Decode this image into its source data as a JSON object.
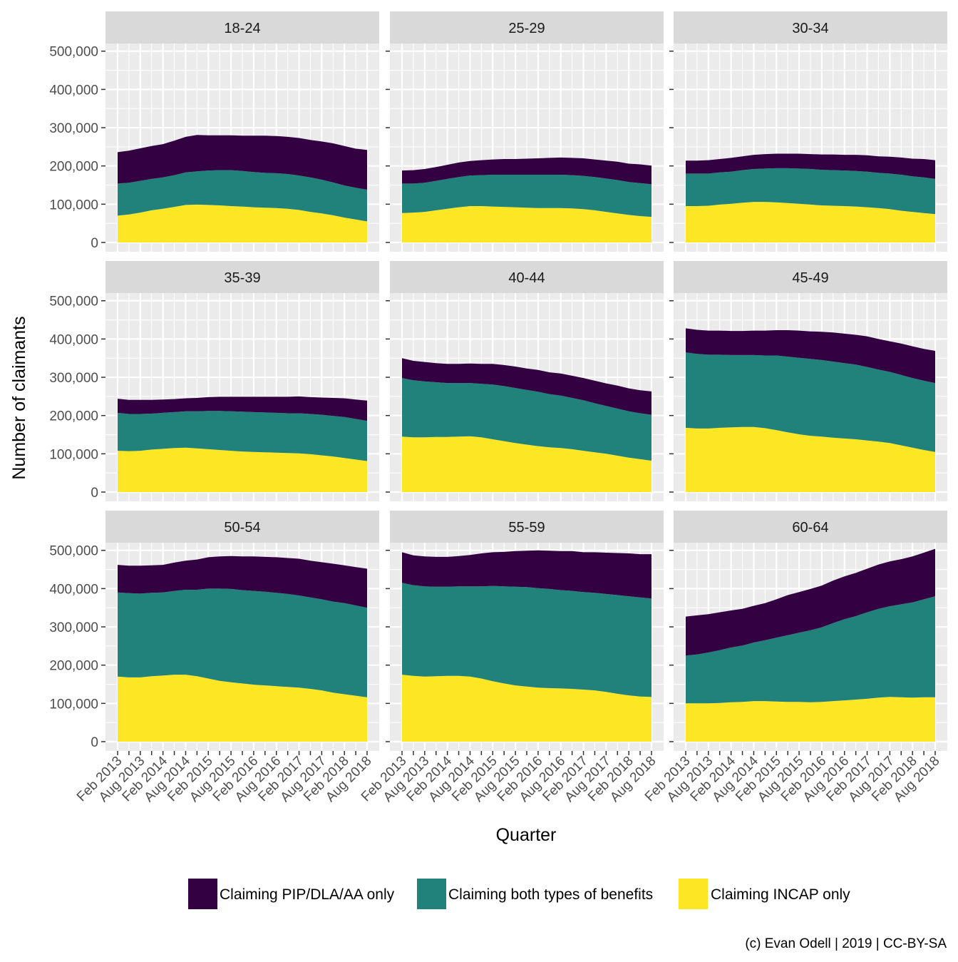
{
  "chart_data": {
    "type": "area",
    "stacked": true,
    "facet_layout": "3x3 grid",
    "xlabel": "Quarter",
    "ylabel": "Number of claimants",
    "ylim": [
      0,
      520000
    ],
    "y_ticks": [
      0,
      100000,
      200000,
      300000,
      400000,
      500000
    ],
    "y_tick_labels": [
      "0",
      "100,000",
      "200,000",
      "300,000",
      "400,000",
      "500,000"
    ],
    "x": [
      "Feb 2013",
      "May 2013",
      "Aug 2013",
      "Nov 2013",
      "Feb 2014",
      "May 2014",
      "Aug 2014",
      "Nov 2014",
      "Feb 2015",
      "May 2015",
      "Aug 2015",
      "Nov 2015",
      "Feb 2016",
      "May 2016",
      "Aug 2016",
      "Nov 2016",
      "Feb 2017",
      "May 2017",
      "Aug 2017",
      "Nov 2017",
      "Feb 2018",
      "May 2018",
      "Aug 2018"
    ],
    "x_tick_labels": [
      "Feb 2013",
      "Aug 2013",
      "Feb 2014",
      "Aug 2014",
      "Feb 2015",
      "Aug 2015",
      "Feb 2016",
      "Aug 2016",
      "Feb 2017",
      "Aug 2017",
      "Feb 2018",
      "Aug 2018"
    ],
    "legend": {
      "position": "bottom",
      "entries": [
        {
          "label": "Claiming PIP/DLA/AA only",
          "color": "#330042"
        },
        {
          "label": "Claiming both types of benefits",
          "color": "#21817B"
        },
        {
          "label": "Claiming INCAP only",
          "color": "#FDE725"
        }
      ]
    },
    "colors": {
      "panel_bg": "#EBEBEB",
      "grid": "#FFFFFF",
      "strip_bg": "#D9D9D9"
    },
    "grid": true,
    "caption": "(c) Evan Odell | 2019 | CC-BY-SA",
    "panels": [
      {
        "label": "18-24",
        "series": [
          {
            "name": "Claiming INCAP only",
            "values": [
              70000,
              73000,
              78000,
              84000,
              88000,
              93000,
              98000,
              99000,
              98000,
              97000,
              95000,
              94000,
              92000,
              91000,
              90000,
              88000,
              85000,
              80000,
              76000,
              71000,
              65000,
              60000,
              55000
            ]
          },
          {
            "name": "Claiming both types of benefits",
            "values": [
              84000,
              83000,
              83000,
              82000,
              82000,
              83000,
              85000,
              87000,
              90000,
              92000,
              94000,
              93000,
              92000,
              91000,
              91000,
              91000,
              90000,
              90000,
              88000,
              86000,
              84000,
              83000,
              83000
            ]
          },
          {
            "name": "Claiming PIP/DLA/AA only",
            "values": [
              82000,
              84000,
              85000,
              86000,
              87000,
              90000,
              93000,
              95000,
              92000,
              91000,
              91000,
              92000,
              95000,
              97000,
              97000,
              97000,
              98000,
              98000,
              100000,
              102000,
              103000,
              102000,
              104000
            ]
          }
        ]
      },
      {
        "label": "25-29",
        "series": [
          {
            "name": "Claiming INCAP only",
            "values": [
              77000,
              78000,
              80000,
              84000,
              88000,
              92000,
              95000,
              95000,
              94000,
              93000,
              92000,
              91000,
              90000,
              90000,
              90000,
              89000,
              87000,
              84000,
              80000,
              76000,
              72000,
              69000,
              67000
            ]
          },
          {
            "name": "Claiming both types of benefits",
            "values": [
              77000,
              76000,
              76000,
              77000,
              78000,
              79000,
              80000,
              81000,
              83000,
              84000,
              85000,
              86000,
              87000,
              87000,
              87000,
              87000,
              87000,
              87000,
              87000,
              87000,
              86000,
              86000,
              85000
            ]
          },
          {
            "name": "Claiming PIP/DLA/AA only",
            "values": [
              34000,
              35000,
              36000,
              36000,
              37000,
              38000,
              38000,
              39000,
              40000,
              41000,
              41000,
              42000,
              43000,
              44000,
              45000,
              45000,
              46000,
              46000,
              47000,
              48000,
              48000,
              49000,
              49000
            ]
          }
        ]
      },
      {
        "label": "30-34",
        "series": [
          {
            "name": "Claiming INCAP only",
            "values": [
              95000,
              95000,
              96000,
              99000,
              101000,
              104000,
              106000,
              106000,
              105000,
              103000,
              101000,
              99000,
              97000,
              96000,
              95000,
              94000,
              92000,
              90000,
              87000,
              83000,
              80000,
              77000,
              74000
            ]
          },
          {
            "name": "Claiming both types of benefits",
            "values": [
              85000,
              85000,
              84000,
              84000,
              84000,
              85000,
              86000,
              87000,
              89000,
              91000,
              92000,
              93000,
              93000,
              93000,
              93000,
              93000,
              93000,
              92000,
              93000,
              94000,
              93000,
              93000,
              92000
            ]
          },
          {
            "name": "Claiming PIP/DLA/AA only",
            "values": [
              34000,
              34000,
              35000,
              35000,
              36000,
              36000,
              37000,
              38000,
              38000,
              38000,
              39000,
              39000,
              40000,
              41000,
              41000,
              42000,
              43000,
              43000,
              44000,
              45000,
              46000,
              48000,
              49000
            ]
          }
        ]
      },
      {
        "label": "35-39",
        "series": [
          {
            "name": "Claiming INCAP only",
            "values": [
              108000,
              107000,
              108000,
              111000,
              113000,
              115000,
              116000,
              114000,
              112000,
              110000,
              108000,
              106000,
              105000,
              104000,
              103000,
              102000,
              101000,
              99000,
              96000,
              93000,
              89000,
              85000,
              81000
            ]
          },
          {
            "name": "Claiming both types of benefits",
            "values": [
              99000,
              97000,
              96000,
              94000,
              94000,
              94000,
              95000,
              97000,
              100000,
              102000,
              103000,
              104000,
              104000,
              104000,
              104000,
              104000,
              105000,
              105000,
              106000,
              106000,
              107000,
              106000,
              105000
            ]
          },
          {
            "name": "Claiming PIP/DLA/AA only",
            "values": [
              37000,
              37000,
              37000,
              36000,
              35000,
              34000,
              34000,
              35000,
              36000,
              37000,
              38000,
              39000,
              40000,
              41000,
              42000,
              43000,
              44000,
              44000,
              45000,
              47000,
              49000,
              51000,
              53000
            ]
          }
        ]
      },
      {
        "label": "40-44",
        "series": [
          {
            "name": "Claiming INCAP only",
            "values": [
              145000,
              143000,
              143000,
              144000,
              144000,
              145000,
              146000,
              143000,
              138000,
              133000,
              128000,
              124000,
              120000,
              117000,
              115000,
              112000,
              108000,
              104000,
              100000,
              95000,
              90000,
              86000,
              82000
            ]
          },
          {
            "name": "Claiming both types of benefits",
            "values": [
              153000,
              149000,
              146000,
              143000,
              141000,
              140000,
              139000,
              140000,
              143000,
              144000,
              144000,
              143000,
              142000,
              139000,
              137000,
              134000,
              132000,
              128000,
              125000,
              123000,
              121000,
              120000,
              120000
            ]
          },
          {
            "name": "Claiming PIP/DLA/AA only",
            "values": [
              52000,
              51000,
              51000,
              50000,
              50000,
              50000,
              51000,
              52000,
              54000,
              55000,
              56000,
              56000,
              57000,
              57000,
              58000,
              58000,
              58000,
              59000,
              59000,
              60000,
              60000,
              60000,
              61000
            ]
          }
        ]
      },
      {
        "label": "45-49",
        "series": [
          {
            "name": "Claiming INCAP only",
            "values": [
              168000,
              166000,
              166000,
              168000,
              169000,
              170000,
              170000,
              167000,
              162000,
              156000,
              151000,
              147000,
              145000,
              142000,
              140000,
              138000,
              135000,
              132000,
              128000,
              122000,
              116000,
              110000,
              105000
            ]
          },
          {
            "name": "Claiming both types of benefits",
            "values": [
              197000,
              195000,
              193000,
              191000,
              189000,
              188000,
              188000,
              190000,
              195000,
              198000,
              200000,
              201000,
              200000,
              199000,
              197000,
              195000,
              192000,
              188000,
              186000,
              184000,
              182000,
              181000,
              180000
            ]
          },
          {
            "name": "Claiming PIP/DLA/AA only",
            "values": [
              63000,
              63000,
              63000,
              63000,
              63000,
              63000,
              64000,
              65000,
              66000,
              69000,
              71000,
              72000,
              74000,
              76000,
              77000,
              78000,
              80000,
              80000,
              80000,
              82000,
              83000,
              83000,
              84000
            ]
          }
        ]
      },
      {
        "label": "50-54",
        "series": [
          {
            "name": "Claiming INCAP only",
            "values": [
              170000,
              168000,
              168000,
              171000,
              173000,
              175000,
              175000,
              171000,
              165000,
              159000,
              155000,
              152000,
              149000,
              147000,
              145000,
              143000,
              141000,
              138000,
              134000,
              128000,
              124000,
              120000,
              116000
            ]
          },
          {
            "name": "Claiming both types of benefits",
            "values": [
              220000,
              220000,
              219000,
              218000,
              217000,
              219000,
              222000,
              226000,
              235000,
              241000,
              244000,
              244000,
              245000,
              245000,
              244000,
              243000,
              241000,
              239000,
              238000,
              238000,
              238000,
              236000,
              234000
            ]
          },
          {
            "name": "Claiming PIP/DLA/AA only",
            "values": [
              72000,
              72000,
              73000,
              72000,
              72000,
              74000,
              76000,
              79000,
              82000,
              84000,
              86000,
              88000,
              90000,
              91000,
              93000,
              94000,
              96000,
              96000,
              97000,
              99000,
              99000,
              100000,
              102000
            ]
          }
        ]
      },
      {
        "label": "55-59",
        "series": [
          {
            "name": "Claiming INCAP only",
            "values": [
              175000,
              172000,
              170000,
              171000,
              172000,
              172000,
              170000,
              165000,
              158000,
              152000,
              147000,
              144000,
              141000,
              140000,
              139000,
              138000,
              136000,
              134000,
              130000,
              125000,
              121000,
              118000,
              117000
            ]
          },
          {
            "name": "Claiming both types of benefits",
            "values": [
              240000,
              237000,
              236000,
              234000,
              233000,
              234000,
              236000,
              241000,
              249000,
              254000,
              258000,
              260000,
              260000,
              259000,
              257000,
              256000,
              255000,
              255000,
              256000,
              258000,
              259000,
              259000,
              257000
            ]
          },
          {
            "name": "Claiming PIP/DLA/AA only",
            "values": [
              80000,
              78000,
              78000,
              78000,
              78000,
              79000,
              82000,
              86000,
              88000,
              90000,
              93000,
              95000,
              99000,
              100000,
              102000,
              104000,
              104000,
              106000,
              108000,
              110000,
              112000,
              113000,
              116000
            ]
          }
        ]
      },
      {
        "label": "60-64",
        "series": [
          {
            "name": "Claiming INCAP only",
            "values": [
              100000,
              100000,
              100000,
              101000,
              103000,
              104000,
              106000,
              106000,
              105000,
              104000,
              104000,
              103000,
              104000,
              106000,
              108000,
              110000,
              112000,
              115000,
              117000,
              116000,
              115000,
              116000,
              116000
            ]
          },
          {
            "name": "Claiming both types of benefits",
            "values": [
              125000,
              128000,
              133000,
              138000,
              143000,
              147000,
              153000,
              159000,
              167000,
              174000,
              181000,
              188000,
              195000,
              204000,
              212000,
              218000,
              226000,
              232000,
              237000,
              243000,
              249000,
              256000,
              264000
            ]
          },
          {
            "name": "Claiming PIP/DLA/AA only",
            "values": [
              102000,
              102000,
              100000,
              99000,
              97000,
              96000,
              96000,
              97000,
              100000,
              105000,
              106000,
              108000,
              109000,
              111000,
              112000,
              113000,
              114000,
              116000,
              117000,
              118000,
              120000,
              122000,
              124000
            ]
          }
        ]
      }
    ]
  }
}
